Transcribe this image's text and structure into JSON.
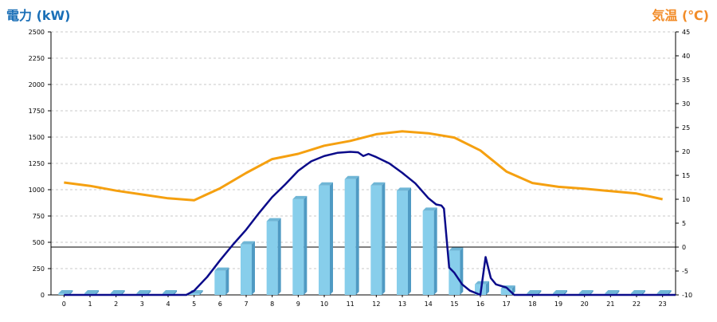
{
  "header": {
    "left_axis_title": "電力 (kW)",
    "right_axis_title": "気温 (℃)"
  },
  "colors": {
    "left_title": "#1a6fb7",
    "right_title": "#f28c28",
    "bar_face": "#87ceeb",
    "bar_top": "#6fb6d6",
    "bar_side": "#4f9ac3",
    "temp_line": "#f5a010",
    "power_line": "#0b0b8a",
    "grid": "#c8c8c8",
    "zero_line": "#000000"
  },
  "chart_data": {
    "type": "bar",
    "categories": [
      "0",
      "1",
      "2",
      "3",
      "4",
      "5",
      "6",
      "7",
      "8",
      "9",
      "10",
      "11",
      "12",
      "13",
      "14",
      "15",
      "16",
      "17",
      "18",
      "19",
      "20",
      "21",
      "22",
      "23"
    ],
    "ylim_left": [
      0,
      2500
    ],
    "ylim_right": [
      -10,
      45
    ],
    "left_ticks": [
      "0",
      "250",
      "500",
      "750",
      "1000",
      "1250",
      "1500",
      "1750",
      "2000",
      "2250",
      "2500"
    ],
    "right_ticks": [
      "-10",
      "-5",
      "0",
      "5",
      "10",
      "15",
      "20",
      "25",
      "30",
      "35",
      "40",
      "45"
    ],
    "grid": true,
    "bars": {
      "values": [
        0,
        0,
        0,
        0,
        0,
        0,
        230,
        480,
        700,
        910,
        1040,
        1100,
        1040,
        990,
        800,
        420,
        100,
        60,
        0,
        0,
        0,
        0,
        0,
        0
      ]
    },
    "temperature": {
      "x": [
        0,
        1,
        2,
        3,
        4,
        5,
        6,
        7,
        8,
        9,
        10,
        11,
        12,
        13,
        14,
        15,
        16,
        17,
        18,
        19,
        20,
        21,
        22,
        23
      ],
      "values": [
        13.5,
        12.8,
        11.8,
        11,
        10.2,
        9.8,
        12.3,
        15.5,
        18.4,
        19.5,
        21.2,
        22.2,
        23.6,
        24.2,
        23.8,
        22.9,
        20.2,
        15.8,
        13.4,
        12.6,
        12.2,
        11.7,
        11.2,
        10
      ]
    },
    "power_line": {
      "x": [
        0,
        4.7,
        5,
        5.5,
        6,
        6.5,
        7,
        7.5,
        8,
        8.5,
        9,
        9.5,
        10,
        10.5,
        11,
        11.3,
        11.5,
        11.7,
        12,
        12.5,
        13,
        13.5,
        14,
        14.3,
        14.5,
        14.6,
        14.8,
        15,
        15.3,
        15.6,
        16,
        16.2,
        16.4,
        16.6,
        17,
        17.3,
        17.5,
        23.5
      ],
      "values": [
        0,
        0,
        40,
        170,
        330,
        480,
        620,
        780,
        930,
        1050,
        1180,
        1270,
        1320,
        1350,
        1360,
        1355,
        1320,
        1340,
        1310,
        1250,
        1160,
        1060,
        920,
        860,
        850,
        820,
        260,
        210,
        100,
        40,
        0,
        360,
        160,
        100,
        70,
        0,
        0,
        0
      ]
    }
  }
}
